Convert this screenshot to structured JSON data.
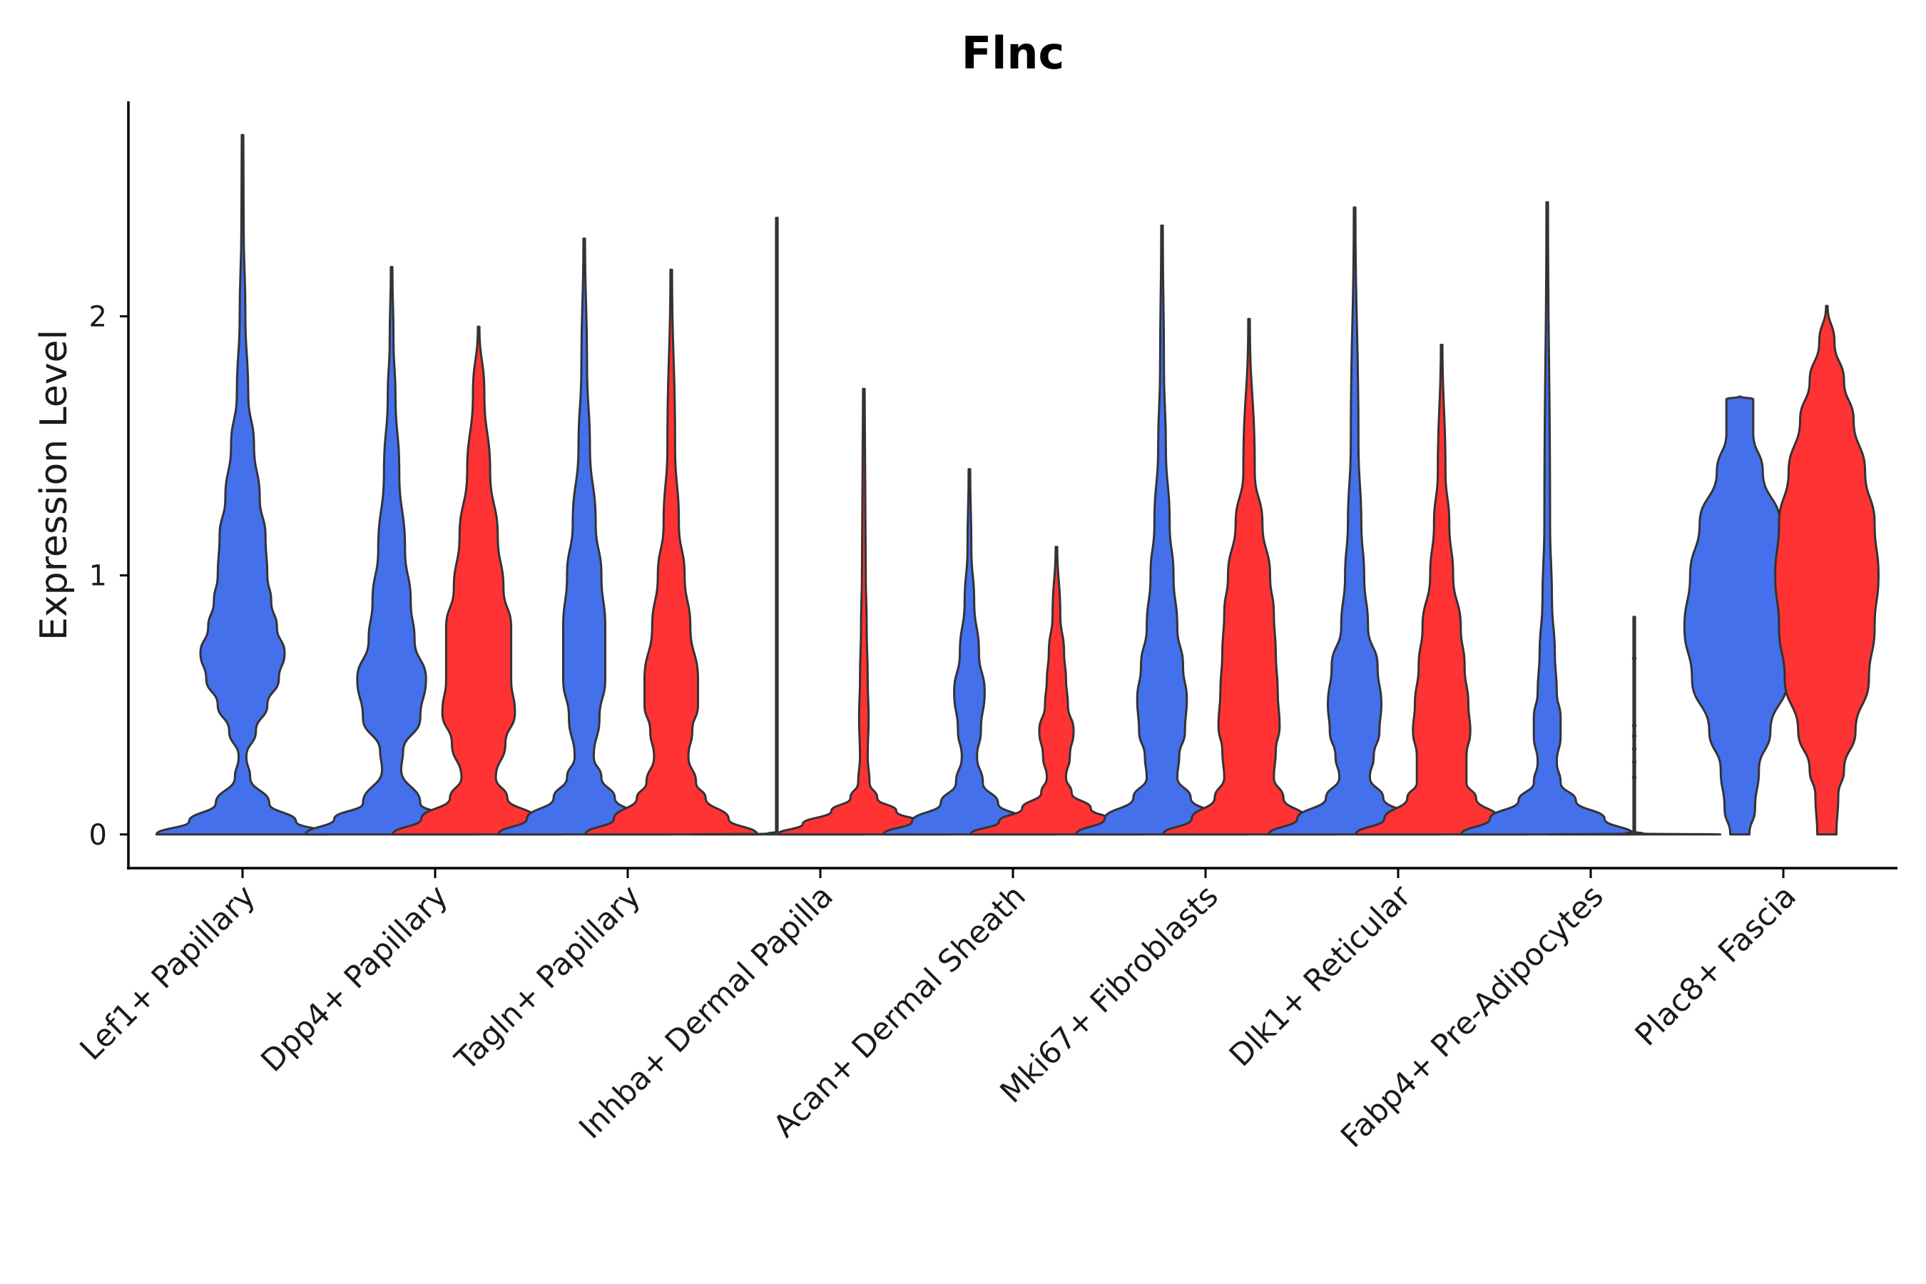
{
  "chart_data": {
    "type": "violin",
    "title": "Flnc",
    "xlabel": "",
    "ylabel": "Expression Level",
    "ylim": [
      -0.13,
      2.83
    ],
    "yticks": [
      0,
      1,
      2
    ],
    "grid": false,
    "legend": "none",
    "group_colors": {
      "blue": "#4470EB",
      "red": "#FF3333"
    },
    "categories": [
      "Lef1+ Papillary",
      "Dpp4+ Papillary",
      "Tagln+ Papillary",
      "Inhba+ Dermal Papilla",
      "Acan+ Dermal Sheath",
      "Mki67+ Fibroblasts",
      "Dlk1+ Reticular",
      "Fabp4+ Pre-Adipocytes",
      "Plac8+ Fascia"
    ],
    "violins": [
      {
        "name": "Lef1+ Papillary (blue)",
        "category": 0,
        "side": "center",
        "color": "#4470EB",
        "max": 2.7,
        "profile": [
          [
            0,
            0.45
          ],
          [
            0.05,
            0.28
          ],
          [
            0.12,
            0.14
          ],
          [
            0.22,
            0.04
          ],
          [
            0.3,
            0.02
          ],
          [
            0.4,
            0.07
          ],
          [
            0.5,
            0.13
          ],
          [
            0.6,
            0.19
          ],
          [
            0.7,
            0.22
          ],
          [
            0.8,
            0.18
          ],
          [
            0.9,
            0.15
          ],
          [
            1.0,
            0.13
          ],
          [
            1.15,
            0.12
          ],
          [
            1.3,
            0.09
          ],
          [
            1.5,
            0.06
          ],
          [
            1.7,
            0.03
          ],
          [
            2.0,
            0.015
          ],
          [
            2.35,
            0.006
          ],
          [
            2.7,
            0.004
          ]
        ]
      },
      {
        "name": "Dpp4+ Papillary (blue)",
        "category": 1,
        "side": "left",
        "color": "#4470EB",
        "max": 2.19,
        "profile": [
          [
            0,
            0.45
          ],
          [
            0.06,
            0.3
          ],
          [
            0.12,
            0.15
          ],
          [
            0.25,
            0.05
          ],
          [
            0.32,
            0.06
          ],
          [
            0.45,
            0.15
          ],
          [
            0.6,
            0.18
          ],
          [
            0.75,
            0.12
          ],
          [
            0.9,
            0.1
          ],
          [
            1.1,
            0.07
          ],
          [
            1.4,
            0.04
          ],
          [
            1.7,
            0.02
          ],
          [
            1.9,
            0.01
          ],
          [
            2.19,
            0.004
          ]
        ]
      },
      {
        "name": "Dpp4+ Papillary (red)",
        "category": 1,
        "side": "right",
        "color": "#FF3333",
        "max": 1.96,
        "profile": [
          [
            0,
            0.45
          ],
          [
            0.06,
            0.3
          ],
          [
            0.14,
            0.15
          ],
          [
            0.22,
            0.09
          ],
          [
            0.35,
            0.14
          ],
          [
            0.47,
            0.19
          ],
          [
            0.6,
            0.17
          ],
          [
            0.8,
            0.17
          ],
          [
            0.95,
            0.13
          ],
          [
            1.15,
            0.1
          ],
          [
            1.4,
            0.06
          ],
          [
            1.7,
            0.03
          ],
          [
            1.96,
            0.004
          ]
        ]
      },
      {
        "name": "Tagln+ Papillary (blue)",
        "category": 2,
        "side": "left",
        "color": "#4470EB",
        "max": 2.3,
        "profile": [
          [
            0,
            0.45
          ],
          [
            0.06,
            0.3
          ],
          [
            0.14,
            0.16
          ],
          [
            0.22,
            0.09
          ],
          [
            0.3,
            0.05
          ],
          [
            0.45,
            0.08
          ],
          [
            0.6,
            0.11
          ],
          [
            0.8,
            0.11
          ],
          [
            1.0,
            0.09
          ],
          [
            1.2,
            0.06
          ],
          [
            1.5,
            0.03
          ],
          [
            1.8,
            0.015
          ],
          [
            2.3,
            0.004
          ]
        ]
      },
      {
        "name": "Tagln+ Papillary (red)",
        "category": 2,
        "side": "right",
        "color": "#FF3333",
        "max": 2.18,
        "profile": [
          [
            0,
            0.45
          ],
          [
            0.06,
            0.3
          ],
          [
            0.14,
            0.18
          ],
          [
            0.2,
            0.13
          ],
          [
            0.3,
            0.09
          ],
          [
            0.4,
            0.11
          ],
          [
            0.5,
            0.14
          ],
          [
            0.6,
            0.14
          ],
          [
            0.8,
            0.1
          ],
          [
            1.0,
            0.07
          ],
          [
            1.2,
            0.04
          ],
          [
            1.5,
            0.02
          ],
          [
            2.18,
            0.004
          ]
        ]
      },
      {
        "name": "Inhba+ Dermal Papilla (blue)",
        "category": 3,
        "side": "left",
        "color": "#4470EB",
        "max": 2.38,
        "profile": [
          [
            0,
            0.45
          ],
          [
            0.003,
            0.05
          ],
          [
            0.01,
            0.004
          ],
          [
            2.38,
            0.004
          ]
        ]
      },
      {
        "name": "Inhba+ Dermal Papilla (red)",
        "category": 3,
        "side": "right",
        "color": "#FF3333",
        "max": 1.72,
        "profile": [
          [
            0,
            0.45
          ],
          [
            0.04,
            0.32
          ],
          [
            0.09,
            0.17
          ],
          [
            0.14,
            0.07
          ],
          [
            0.2,
            0.03
          ],
          [
            0.3,
            0.02
          ],
          [
            0.45,
            0.025
          ],
          [
            0.6,
            0.02
          ],
          [
            0.8,
            0.015
          ],
          [
            1.0,
            0.01
          ],
          [
            1.72,
            0.004
          ]
        ]
      },
      {
        "name": "Acan+ Dermal Sheath (blue)",
        "category": 4,
        "side": "left",
        "color": "#4470EB",
        "max": 1.41,
        "profile": [
          [
            0,
            0.45
          ],
          [
            0.05,
            0.3
          ],
          [
            0.12,
            0.15
          ],
          [
            0.2,
            0.07
          ],
          [
            0.3,
            0.04
          ],
          [
            0.4,
            0.06
          ],
          [
            0.55,
            0.08
          ],
          [
            0.7,
            0.05
          ],
          [
            0.9,
            0.025
          ],
          [
            1.1,
            0.01
          ],
          [
            1.41,
            0.004
          ]
        ]
      },
      {
        "name": "Acan+ Dermal Sheath (red)",
        "category": 4,
        "side": "right",
        "color": "#FF3333",
        "max": 1.11,
        "profile": [
          [
            0,
            0.45
          ],
          [
            0.05,
            0.3
          ],
          [
            0.1,
            0.18
          ],
          [
            0.16,
            0.08
          ],
          [
            0.22,
            0.05
          ],
          [
            0.3,
            0.07
          ],
          [
            0.4,
            0.09
          ],
          [
            0.5,
            0.06
          ],
          [
            0.6,
            0.05
          ],
          [
            0.7,
            0.04
          ],
          [
            0.85,
            0.02
          ],
          [
            1.11,
            0.004
          ]
        ]
      },
      {
        "name": "Mki67+ Fibroblasts (blue)",
        "category": 5,
        "side": "left",
        "color": "#4470EB",
        "max": 2.35,
        "profile": [
          [
            0,
            0.45
          ],
          [
            0.06,
            0.3
          ],
          [
            0.14,
            0.15
          ],
          [
            0.22,
            0.08
          ],
          [
            0.3,
            0.09
          ],
          [
            0.4,
            0.12
          ],
          [
            0.52,
            0.13
          ],
          [
            0.65,
            0.11
          ],
          [
            0.8,
            0.08
          ],
          [
            1.0,
            0.06
          ],
          [
            1.2,
            0.04
          ],
          [
            1.5,
            0.02
          ],
          [
            1.8,
            0.01
          ],
          [
            2.35,
            0.004
          ]
        ]
      },
      {
        "name": "Mki67+ Fibroblasts (red)",
        "category": 5,
        "side": "right",
        "color": "#FF3333",
        "max": 1.99,
        "profile": [
          [
            0,
            0.45
          ],
          [
            0.06,
            0.3
          ],
          [
            0.14,
            0.18
          ],
          [
            0.22,
            0.13
          ],
          [
            0.32,
            0.14
          ],
          [
            0.42,
            0.16
          ],
          [
            0.55,
            0.15
          ],
          [
            0.7,
            0.14
          ],
          [
            0.85,
            0.13
          ],
          [
            1.0,
            0.11
          ],
          [
            1.2,
            0.07
          ],
          [
            1.4,
            0.03
          ],
          [
            1.99,
            0.004
          ]
        ]
      },
      {
        "name": "Dlk1+ Reticular (blue)",
        "category": 6,
        "side": "left",
        "color": "#4470EB",
        "max": 2.42,
        "profile": [
          [
            0,
            0.45
          ],
          [
            0.06,
            0.3
          ],
          [
            0.14,
            0.15
          ],
          [
            0.22,
            0.08
          ],
          [
            0.3,
            0.1
          ],
          [
            0.4,
            0.13
          ],
          [
            0.5,
            0.14
          ],
          [
            0.65,
            0.12
          ],
          [
            0.8,
            0.07
          ],
          [
            1.0,
            0.05
          ],
          [
            1.2,
            0.035
          ],
          [
            1.5,
            0.02
          ],
          [
            2.42,
            0.004
          ]
        ]
      },
      {
        "name": "Dlk1+ Reticular (red)",
        "category": 6,
        "side": "right",
        "color": "#FF3333",
        "max": 1.89,
        "profile": [
          [
            0,
            0.45
          ],
          [
            0.06,
            0.3
          ],
          [
            0.14,
            0.18
          ],
          [
            0.2,
            0.13
          ],
          [
            0.3,
            0.13
          ],
          [
            0.4,
            0.15
          ],
          [
            0.5,
            0.14
          ],
          [
            0.65,
            0.12
          ],
          [
            0.8,
            0.1
          ],
          [
            1.0,
            0.06
          ],
          [
            1.2,
            0.04
          ],
          [
            1.4,
            0.02
          ],
          [
            1.89,
            0.004
          ]
        ]
      },
      {
        "name": "Fabp4+ Pre-Adipocytes (blue)",
        "category": 7,
        "side": "left",
        "color": "#4470EB",
        "max": 2.44,
        "profile": [
          [
            0,
            0.45
          ],
          [
            0.06,
            0.3
          ],
          [
            0.13,
            0.15
          ],
          [
            0.2,
            0.07
          ],
          [
            0.28,
            0.05
          ],
          [
            0.38,
            0.07
          ],
          [
            0.45,
            0.07
          ],
          [
            0.55,
            0.05
          ],
          [
            0.7,
            0.04
          ],
          [
            0.9,
            0.025
          ],
          [
            1.2,
            0.015
          ],
          [
            2.44,
            0.004
          ]
        ]
      },
      {
        "name": "Fabp4+ Pre-Adipocytes (red)",
        "category": 7,
        "side": "right",
        "color": "#FF3333",
        "max": 0.84,
        "profile": [
          [
            0,
            0.45
          ],
          [
            0.003,
            0.05
          ],
          [
            0.01,
            0.004
          ],
          [
            0.84,
            0.004
          ]
        ]
      },
      {
        "name": "Plac8+ Fascia (blue)",
        "category": 8,
        "side": "left",
        "color": "#4470EB",
        "max": 1.68,
        "profile": [
          [
            0,
            0.05
          ],
          [
            0.1,
            0.08
          ],
          [
            0.25,
            0.1
          ],
          [
            0.4,
            0.16
          ],
          [
            0.6,
            0.25
          ],
          [
            0.8,
            0.29
          ],
          [
            1.0,
            0.26
          ],
          [
            1.2,
            0.21
          ],
          [
            1.4,
            0.12
          ],
          [
            1.55,
            0.07
          ],
          [
            1.68,
            0.07
          ],
          [
            1.69,
            0.004
          ]
        ]
      },
      {
        "name": "Plac8+ Fascia (red)",
        "category": 8,
        "side": "right",
        "color": "#FF3333",
        "max": 2.04,
        "profile": [
          [
            0,
            0.05
          ],
          [
            0.15,
            0.06
          ],
          [
            0.25,
            0.09
          ],
          [
            0.4,
            0.15
          ],
          [
            0.6,
            0.22
          ],
          [
            0.8,
            0.25
          ],
          [
            1.0,
            0.27
          ],
          [
            1.2,
            0.25
          ],
          [
            1.4,
            0.2
          ],
          [
            1.6,
            0.14
          ],
          [
            1.75,
            0.09
          ],
          [
            1.9,
            0.04
          ],
          [
            2.04,
            0.004
          ]
        ]
      }
    ],
    "annotations": [
      {
        "name": "Fabp4+ Pre-Adipocytes outlier points",
        "category": 7,
        "side": "right",
        "values": [
          0.22,
          0.28,
          0.33,
          0.38,
          0.42,
          0.68
        ]
      }
    ]
  }
}
